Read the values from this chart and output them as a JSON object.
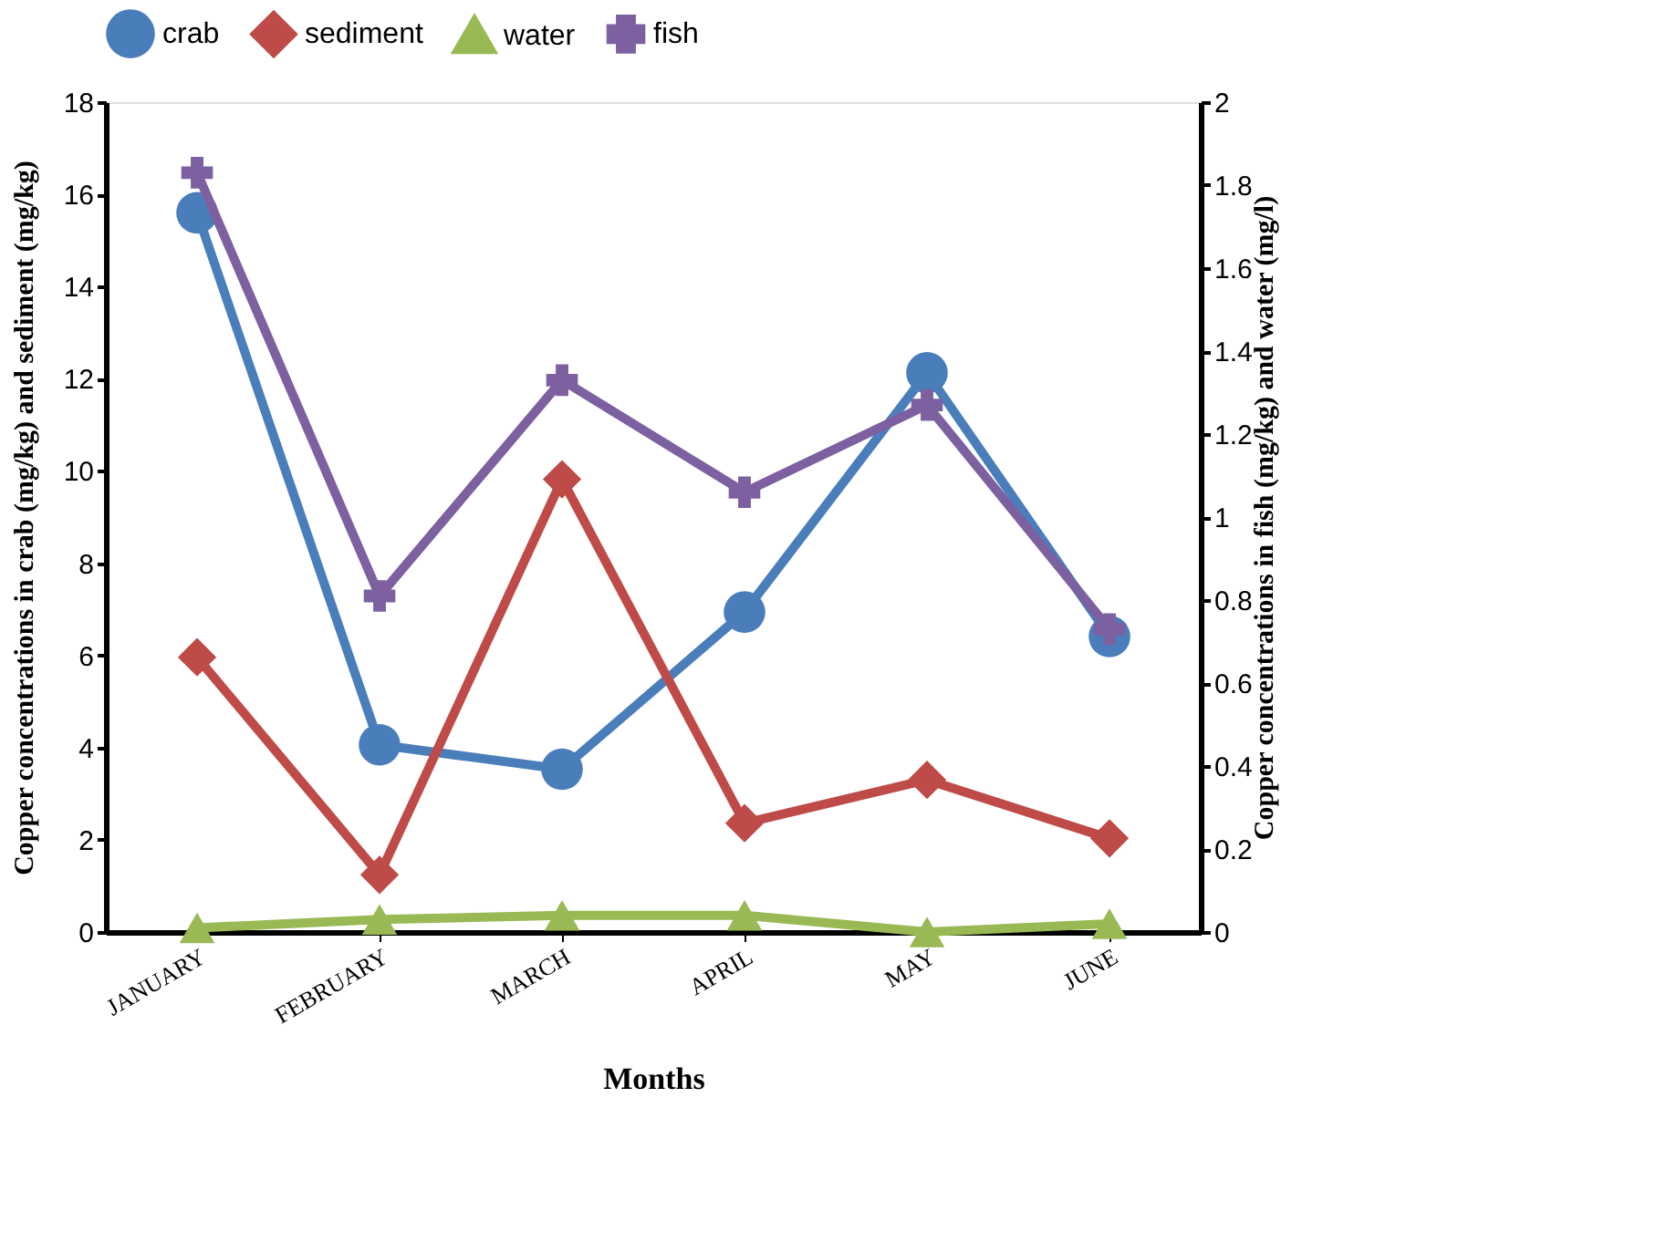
{
  "chart_data": {
    "type": "line",
    "categories": [
      "JANUARY",
      "FEBRUARY",
      "MARCH",
      "APRIL",
      "MAY",
      "JUNE"
    ],
    "xlabel": "Months",
    "ylabel": "Copper concentrations in  crab (mg/kg) and sediment (mg/kg)",
    "y2label": "Copper concentrations in fish (mg/kg) and water (mg/l)",
    "ylim": [
      0,
      18
    ],
    "yticks": [
      0,
      2,
      4,
      6,
      8,
      10,
      12,
      14,
      16,
      18
    ],
    "y2lim": [
      0,
      2
    ],
    "y2ticks": [
      0,
      0.2,
      0.4,
      0.6,
      0.8,
      1,
      1.2,
      1.4,
      1.6,
      1.8,
      2
    ],
    "legend": "top",
    "grid": false,
    "line_style": "solid",
    "series": [
      {
        "name": "crab",
        "color": "#4a7ebb",
        "marker": "circle",
        "values": [
          15.6,
          4.06,
          3.53,
          6.94,
          12.13,
          6.41
        ]
      },
      {
        "name": "sediment",
        "color": "#be4b48",
        "marker": "diamond",
        "values": [
          5.96,
          1.24,
          9.82,
          2.36,
          3.3,
          2.03
        ]
      },
      {
        "name": "water",
        "color": "#98b954",
        "marker": "triangle",
        "axis": "y2",
        "values": [
          0.01,
          0.03,
          0.04,
          0.04,
          0.0,
          0.02
        ]
      },
      {
        "name": "fish",
        "color": "#7d60a0",
        "marker": "cross",
        "axis": "y2",
        "values": [
          1.83,
          0.81,
          1.33,
          1.06,
          1.27,
          0.73
        ]
      }
    ]
  }
}
